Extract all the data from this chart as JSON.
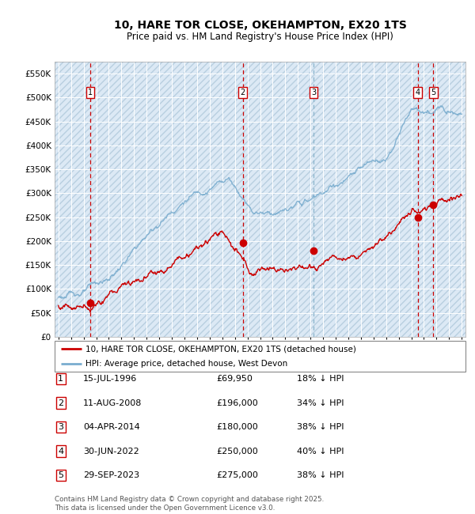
{
  "title": "10, HARE TOR CLOSE, OKEHAMPTON, EX20 1TS",
  "subtitle": "Price paid vs. HM Land Registry's House Price Index (HPI)",
  "ytick_values": [
    0,
    50000,
    100000,
    150000,
    200000,
    250000,
    300000,
    350000,
    400000,
    450000,
    500000,
    550000
  ],
  "ylim": [
    0,
    575000
  ],
  "xlim_start": 1993.7,
  "xlim_end": 2026.3,
  "transactions": [
    {
      "num": 1,
      "date": "15-JUL-1996",
      "year": 1996.54,
      "price": 69950,
      "pct": "18%",
      "dir": "↓"
    },
    {
      "num": 2,
      "date": "11-AUG-2008",
      "year": 2008.62,
      "price": 196000,
      "pct": "34%",
      "dir": "↓"
    },
    {
      "num": 3,
      "date": "04-APR-2014",
      "year": 2014.25,
      "price": 180000,
      "pct": "38%",
      "dir": "↓"
    },
    {
      "num": 4,
      "date": "30-JUN-2022",
      "year": 2022.5,
      "price": 250000,
      "pct": "40%",
      "dir": "↓"
    },
    {
      "num": 5,
      "date": "29-SEP-2023",
      "year": 2023.75,
      "price": 275000,
      "pct": "38%",
      "dir": "↓"
    }
  ],
  "legend_line1": "10, HARE TOR CLOSE, OKEHAMPTON, EX20 1TS (detached house)",
  "legend_line2": "HPI: Average price, detached house, West Devon",
  "footer": "Contains HM Land Registry data © Crown copyright and database right 2025.\nThis data is licensed under the Open Government Licence v3.0.",
  "transaction_box_color": "#cc0000",
  "hpi_line_color": "#7aadcf",
  "price_line_color": "#cc0000",
  "bg_color": "#dce9f5",
  "grid_color": "#ffffff",
  "vline_color_red": "#cc0000",
  "vline_color_blue": "#8ab4cc"
}
